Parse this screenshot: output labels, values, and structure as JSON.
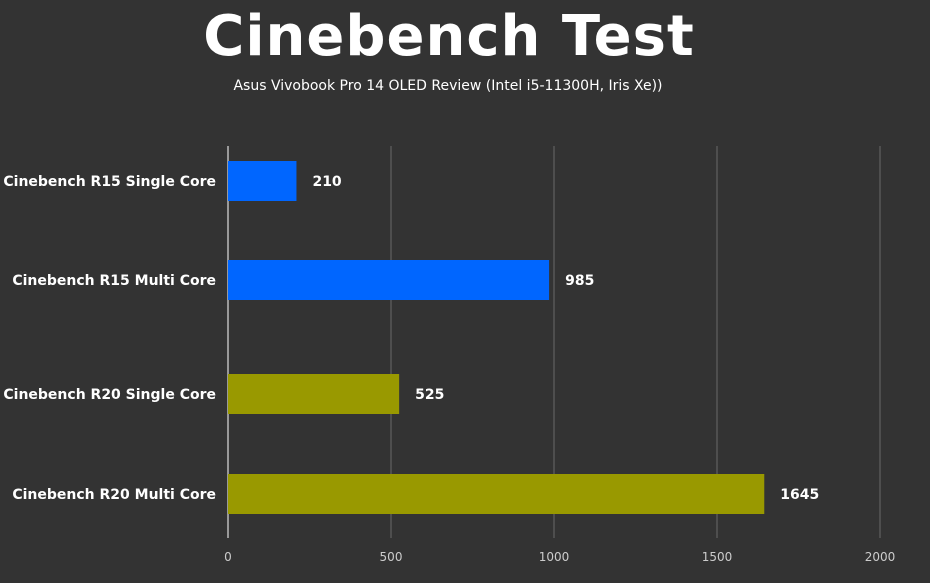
{
  "chart_data": {
    "type": "bar",
    "orientation": "horizontal",
    "title": "Cinebench Test",
    "subtitle": "Asus Vivobook Pro 14 OLED Review (Intel i5-11300H, Iris Xe))",
    "categories": [
      "Cinebench R15 Single Core",
      "Cinebench R15 Multi Core",
      "Cinebench R20 Single Core",
      "Cinebench R20 Multi Core"
    ],
    "values": [
      210,
      985,
      525,
      1645
    ],
    "value_labels": [
      "210",
      "985",
      "525",
      "1645"
    ],
    "bar_colors": [
      "#0066ff",
      "#0066ff",
      "#999900",
      "#999900"
    ],
    "xlim": [
      0,
      2000
    ],
    "xticks": [
      0,
      500,
      1000,
      1500,
      2000
    ],
    "xtick_labels": [
      "0",
      "500",
      "1000",
      "1500",
      "2000"
    ],
    "grid": true,
    "legend": "none"
  }
}
